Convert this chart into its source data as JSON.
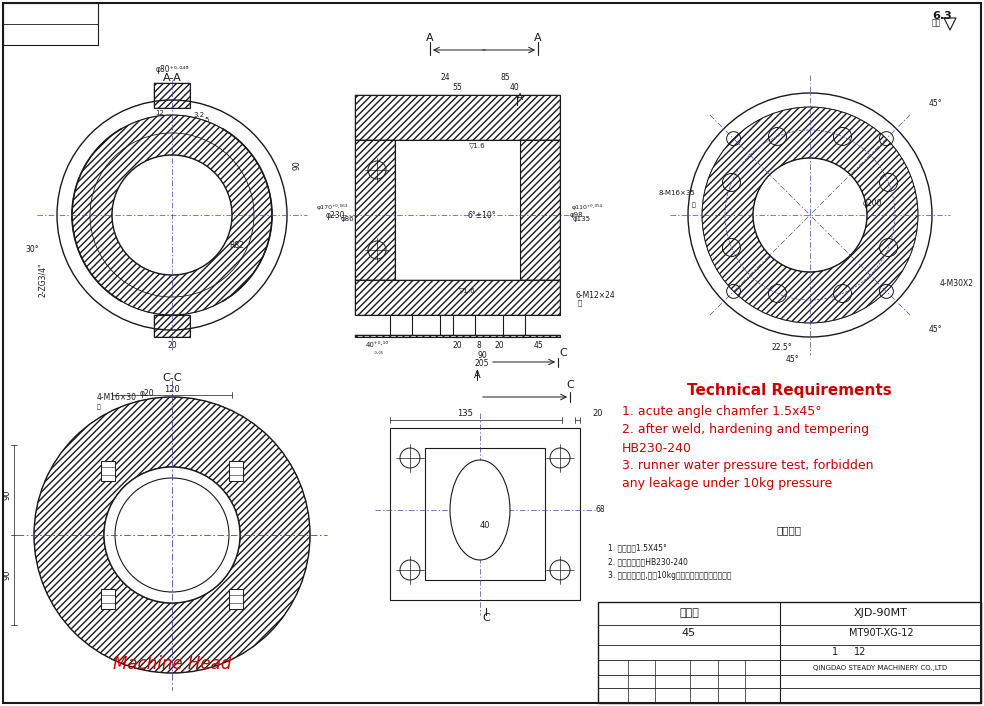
{
  "bg_color": "#ffffff",
  "lc": "#1a1a1a",
  "rc": "#cc0000",
  "dlc": "#4444aa",
  "tech_req_title": "Technical Requirements",
  "tech_req_lines": [
    "1. acute angle chamfer 1.5x45°",
    "2. after weld, hardening and tempering",
    "HB230-240",
    "3. runner water pressure test, forbidden",
    "any leakage under 10kg pressure"
  ],
  "cn_tech_title": "技术要求",
  "cn_tech_lines": [
    "1. 锐角倒角1.5X45°",
    "2. 焊后调质处理HB230-240",
    "3. 流道水压测试,压力10kg时各焊接处不得有渗漏现象"
  ],
  "tb_part": "机头体",
  "tb_drwno": "XJD-90MT",
  "tb_mat": "45",
  "tb_scale": "MT90T-XG-12",
  "tb_sheet": "1",
  "tb_total": "12",
  "tb_company": "QINGDAO STEADY MACHINERY CO.,LTD",
  "rough": "6.3",
  "label_aa": "A-A",
  "label_cc": "C-C",
  "label_mh": "Machine Head"
}
